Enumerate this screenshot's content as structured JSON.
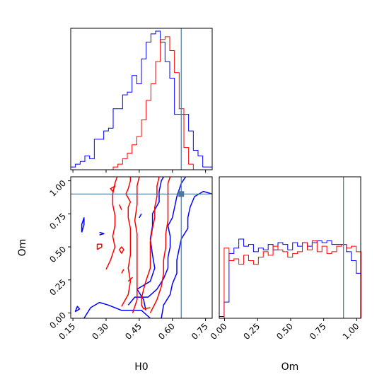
{
  "chart_data": {
    "type": "corner",
    "parameters": [
      "H0",
      "Om"
    ],
    "truth": {
      "H0": 0.64,
      "Om": 0.9
    },
    "colors": {
      "series_blue": "#0000ff",
      "series_red": "#ff0000",
      "truth": "#4c78a0",
      "frame": "#000000"
    },
    "ranges": {
      "H0": [
        0.14,
        0.78
      ],
      "Om": [
        -0.04,
        1.03
      ]
    },
    "ticks": {
      "H0": {
        "values": [
          0.15,
          0.3,
          0.45,
          0.6,
          0.75
        ],
        "labels": [
          "0.15",
          "0.30",
          "0.45",
          "0.60",
          "0.75"
        ]
      },
      "Om": {
        "values": [
          0.0,
          0.25,
          0.5,
          0.75,
          1.0
        ],
        "labels": [
          "0.00",
          "0.25",
          "0.50",
          "0.75",
          "1.00"
        ]
      }
    },
    "labels": {
      "H0_x": "H0",
      "Om_x": "Om",
      "Om_y": "Om"
    },
    "histograms": {
      "H0": {
        "blue": {
          "edges": [
            0.14,
            0.1613,
            0.1827,
            0.204,
            0.2253,
            0.2467,
            0.268,
            0.2893,
            0.3107,
            0.332,
            0.3533,
            0.3747,
            0.396,
            0.4173,
            0.4387,
            0.46,
            0.4813,
            0.5027,
            0.524,
            0.5453,
            0.5667,
            0.588,
            0.6093,
            0.6307,
            0.652,
            0.6733,
            0.6947,
            0.716,
            0.7373,
            0.7587,
            0.78
          ],
          "counts": [
            2,
            4,
            6,
            10,
            8,
            22,
            22,
            28,
            30,
            44,
            44,
            54,
            56,
            68,
            62,
            80,
            92,
            98,
            100,
            92,
            78,
            66,
            40,
            40,
            40,
            28,
            14,
            10,
            2,
            2
          ]
        },
        "red": {
          "edges": [
            0.14,
            0.1613,
            0.1827,
            0.204,
            0.2253,
            0.2467,
            0.268,
            0.2893,
            0.3107,
            0.332,
            0.3533,
            0.3747,
            0.396,
            0.4173,
            0.4387,
            0.46,
            0.4813,
            0.5027,
            0.524,
            0.5453,
            0.5667,
            0.588,
            0.6093,
            0.6307,
            0.652,
            0.6733,
            0.6947,
            0.716,
            0.7373,
            0.7587,
            0.78
          ],
          "counts": [
            0,
            0,
            0,
            0,
            0,
            0,
            0,
            0,
            0,
            2,
            4,
            8,
            12,
            18,
            24,
            36,
            50,
            62,
            78,
            94,
            96,
            86,
            70,
            44,
            16,
            4,
            0,
            0,
            0,
            0
          ]
        }
      },
      "Om": {
        "blue": {
          "edges": [
            -0.04,
            -0.003,
            0.034,
            0.071,
            0.108,
            0.145,
            0.182,
            0.219,
            0.256,
            0.293,
            0.33,
            0.367,
            0.404,
            0.441,
            0.478,
            0.515,
            0.552,
            0.589,
            0.626,
            0.663,
            0.7,
            0.737,
            0.774,
            0.811,
            0.848,
            0.885,
            0.922,
            0.959,
            0.996,
            1.033
          ],
          "counts": [
            2,
            18,
            72,
            78,
            88,
            80,
            82,
            74,
            78,
            76,
            82,
            76,
            84,
            82,
            76,
            84,
            80,
            84,
            80,
            84,
            86,
            84,
            86,
            82,
            82,
            82,
            74,
            64,
            50,
            20
          ]
        },
        "red": {
          "edges": [
            -0.04,
            -0.003,
            0.034,
            0.071,
            0.108,
            0.145,
            0.182,
            0.219,
            0.256,
            0.293,
            0.33,
            0.367,
            0.404,
            0.441,
            0.478,
            0.515,
            0.552,
            0.589,
            0.626,
            0.663,
            0.7,
            0.737,
            0.774,
            0.811,
            0.848,
            0.885,
            0.922,
            0.959,
            0.996,
            1.033
          ],
          "counts": [
            0,
            78,
            64,
            66,
            60,
            70,
            64,
            60,
            68,
            74,
            70,
            80,
            76,
            74,
            68,
            72,
            74,
            84,
            76,
            86,
            74,
            80,
            72,
            74,
            80,
            82,
            78,
            80,
            74,
            0
          ]
        }
      }
    },
    "contours": {
      "blue": [
        [
          [
            0.2,
            -0.04
          ],
          [
            0.23,
            0.04
          ],
          [
            0.27,
            0.08
          ],
          [
            0.31,
            0.06
          ],
          [
            0.37,
            0.02
          ],
          [
            0.42,
            0.02
          ],
          [
            0.46,
            0.02
          ],
          [
            0.5,
            -0.04
          ]
        ],
        [
          [
            0.48,
            0.02
          ],
          [
            0.47,
            0.1
          ],
          [
            0.44,
            0.18
          ],
          [
            0.5,
            0.24
          ],
          [
            0.52,
            0.34
          ],
          [
            0.51,
            0.44
          ],
          [
            0.5,
            0.56
          ],
          [
            0.51,
            0.66
          ],
          [
            0.51,
            0.75
          ],
          [
            0.54,
            0.84
          ],
          [
            0.54,
            0.92
          ],
          [
            0.55,
            1.0
          ],
          [
            0.56,
            1.03
          ]
        ],
        [
          [
            0.55,
            -0.04
          ],
          [
            0.56,
            0.06
          ],
          [
            0.59,
            0.14
          ],
          [
            0.6,
            0.22
          ],
          [
            0.62,
            0.3
          ],
          [
            0.62,
            0.4
          ],
          [
            0.63,
            0.48
          ],
          [
            0.64,
            0.56
          ],
          [
            0.67,
            0.64
          ],
          [
            0.67,
            0.72
          ],
          [
            0.68,
            0.8
          ],
          [
            0.7,
            0.88
          ],
          [
            0.74,
            0.92
          ],
          [
            0.78,
            0.9
          ]
        ],
        [
          [
            0.4,
            0.06
          ],
          [
            0.43,
            0.12
          ],
          [
            0.49,
            0.12
          ],
          [
            0.53,
            0.18
          ],
          [
            0.56,
            0.26
          ],
          [
            0.58,
            0.34
          ],
          [
            0.58,
            0.42
          ],
          [
            0.59,
            0.5
          ],
          [
            0.59,
            0.58
          ],
          [
            0.58,
            0.66
          ],
          [
            0.6,
            0.72
          ],
          [
            0.61,
            0.8
          ],
          [
            0.62,
            0.88
          ],
          [
            0.64,
            0.98
          ],
          [
            0.66,
            1.03
          ]
        ],
        [
          [
            0.19,
            0.61
          ],
          [
            0.2,
            0.67
          ],
          [
            0.2,
            0.72
          ],
          [
            0.19,
            0.67
          ],
          [
            0.19,
            0.61
          ]
        ],
        [
          [
            0.16,
            0.01
          ],
          [
            0.18,
            0.03
          ],
          [
            0.17,
            0.05
          ],
          [
            0.16,
            0.01
          ]
        ],
        [
          [
            0.27,
            0.59
          ],
          [
            0.29,
            0.6
          ],
          [
            0.27,
            0.61
          ]
        ],
        [
          [
            0.45,
            0.72
          ],
          [
            0.46,
            0.75
          ]
        ]
      ],
      "red": [
        [
          [
            0.37,
            0.05
          ],
          [
            0.4,
            0.14
          ],
          [
            0.41,
            0.24
          ],
          [
            0.4,
            0.34
          ],
          [
            0.41,
            0.44
          ],
          [
            0.41,
            0.54
          ],
          [
            0.41,
            0.64
          ],
          [
            0.4,
            0.72
          ],
          [
            0.4,
            0.8
          ],
          [
            0.41,
            0.84
          ],
          [
            0.39,
            0.9
          ],
          [
            0.4,
            0.94
          ],
          [
            0.41,
            1.0
          ],
          [
            0.41,
            1.03
          ]
        ],
        [
          [
            0.54,
            1.03
          ],
          [
            0.53,
            0.96
          ],
          [
            0.53,
            0.88
          ],
          [
            0.52,
            0.8
          ],
          [
            0.52,
            0.72
          ],
          [
            0.51,
            0.64
          ],
          [
            0.5,
            0.54
          ],
          [
            0.5,
            0.44
          ],
          [
            0.5,
            0.34
          ],
          [
            0.48,
            0.24
          ],
          [
            0.47,
            0.18
          ],
          [
            0.46,
            0.11
          ],
          [
            0.46,
            0.06
          ],
          [
            0.47,
            0.03
          ],
          [
            0.5,
            0.04
          ]
        ],
        [
          [
            0.42,
            0.0
          ],
          [
            0.44,
            0.1
          ],
          [
            0.44,
            0.2
          ],
          [
            0.44,
            0.3
          ],
          [
            0.44,
            0.4
          ],
          [
            0.44,
            0.5
          ],
          [
            0.44,
            0.6
          ],
          [
            0.43,
            0.7
          ],
          [
            0.44,
            0.82
          ],
          [
            0.44,
            0.96
          ],
          [
            0.45,
            1.03
          ]
        ],
        [
          [
            0.5,
            0.0
          ],
          [
            0.53,
            0.1
          ],
          [
            0.55,
            0.2
          ],
          [
            0.56,
            0.3
          ],
          [
            0.56,
            0.4
          ],
          [
            0.57,
            0.5
          ],
          [
            0.57,
            0.6
          ],
          [
            0.58,
            0.7
          ],
          [
            0.58,
            0.8
          ],
          [
            0.58,
            0.9
          ],
          [
            0.58,
            0.98
          ],
          [
            0.59,
            1.03
          ]
        ],
        [
          [
            0.3,
            0.33
          ],
          [
            0.32,
            0.4
          ],
          [
            0.34,
            0.5
          ],
          [
            0.33,
            0.58
          ],
          [
            0.34,
            0.66
          ],
          [
            0.34,
            0.74
          ],
          [
            0.33,
            0.82
          ],
          [
            0.33,
            0.9
          ],
          [
            0.34,
            0.98
          ],
          [
            0.35,
            1.03
          ]
        ],
        [
          [
            0.26,
            0.48
          ],
          [
            0.28,
            0.5
          ],
          [
            0.28,
            0.52
          ],
          [
            0.26,
            0.52
          ],
          [
            0.26,
            0.48
          ]
        ],
        [
          [
            0.37,
            0.45
          ],
          [
            0.38,
            0.48
          ],
          [
            0.37,
            0.5
          ],
          [
            0.36,
            0.48
          ],
          [
            0.37,
            0.45
          ]
        ],
        [
          [
            0.33,
            0.92
          ],
          [
            0.34,
            0.96
          ],
          [
            0.32,
            0.94
          ],
          [
            0.33,
            0.92
          ]
        ],
        [
          [
            0.36,
            0.82
          ],
          [
            0.37,
            0.78
          ]
        ],
        [
          [
            0.4,
            0.24
          ],
          [
            0.42,
            0.27
          ]
        ],
        [
          [
            0.37,
            0.3
          ],
          [
            0.38,
            0.33
          ]
        ]
      ]
    }
  }
}
